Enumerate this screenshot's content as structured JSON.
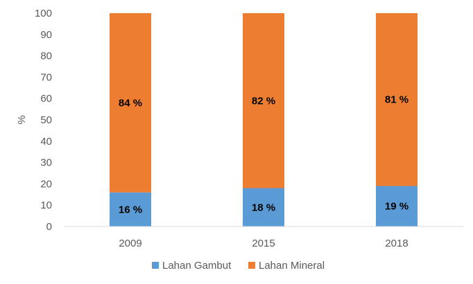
{
  "chart_data": {
    "type": "bar",
    "stacked": true,
    "categories": [
      "2009",
      "2015",
      "2018"
    ],
    "series": [
      {
        "name": "Lahan Gambut",
        "values": [
          16,
          18,
          19
        ],
        "labels": [
          "16 %",
          "18 %",
          "19 %"
        ],
        "color": "#5B9BD5"
      },
      {
        "name": "Lahan Mineral",
        "values": [
          84,
          82,
          81
        ],
        "labels": [
          "84 %",
          "82 %",
          "81 %"
        ],
        "color": "#ED7D31"
      }
    ],
    "ylabel": "%",
    "ylim": [
      0,
      100
    ],
    "yticks": [
      0,
      10,
      20,
      30,
      40,
      50,
      60,
      70,
      80,
      90,
      100
    ],
    "grid": false,
    "legend_position": "bottom"
  }
}
